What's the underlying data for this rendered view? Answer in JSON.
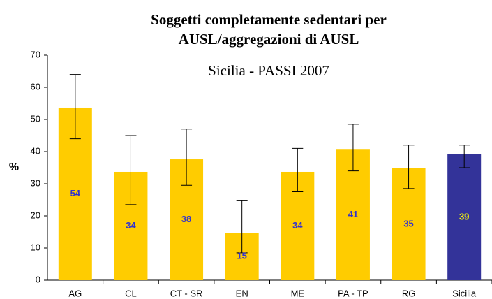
{
  "chart_data": {
    "type": "bar",
    "title": [
      "Soggetti completamente sedentari per",
      "AUSL/aggregazioni di AUSL"
    ],
    "subtitle": "Sicilia - PASSI 2007",
    "y_label": "%",
    "categories": [
      "AG",
      "CL",
      "CT - SR",
      "EN",
      "ME",
      "PA - TP",
      "RG",
      "Sicilia"
    ],
    "values": [
      53.7,
      33.7,
      37.6,
      14.7,
      33.7,
      40.6,
      34.8,
      39.2
    ],
    "value_labels": [
      "54",
      "34",
      "38",
      "15",
      "34",
      "41",
      "35",
      "39"
    ],
    "lower": [
      44,
      23.5,
      29.5,
      8.5,
      27.5,
      34,
      28.5,
      35
    ],
    "upper": [
      64,
      45,
      47,
      24.7,
      41,
      48.5,
      42,
      42
    ],
    "colors": [
      "#ffcc00",
      "#ffcc00",
      "#ffcc00",
      "#ffcc00",
      "#ffcc00",
      "#ffcc00",
      "#ffcc00",
      "#333399"
    ],
    "label_colors": [
      "#3333cc",
      "#3333cc",
      "#3333cc",
      "#3333cc",
      "#3333cc",
      "#3333cc",
      "#3333cc",
      "#ffff00"
    ],
    "ylim": [
      0,
      70
    ],
    "yticks": [
      0,
      10,
      20,
      30,
      40,
      50,
      60,
      70
    ],
    "grid": false
  }
}
